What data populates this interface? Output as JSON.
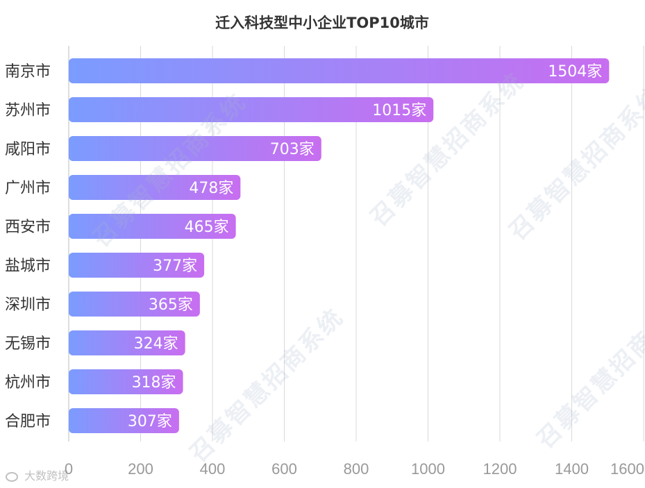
{
  "chart_data": {
    "type": "bar",
    "orientation": "horizontal",
    "title": "迁入科技型中小企业TOP10城市",
    "categories": [
      "南京市",
      "苏州市",
      "咸阳市",
      "广州市",
      "西安市",
      "盐城市",
      "深圳市",
      "无锡市",
      "杭州市",
      "合肥市"
    ],
    "values": [
      1504,
      1015,
      703,
      478,
      465,
      377,
      365,
      324,
      318,
      307
    ],
    "value_labels": [
      "1504家",
      "1015家",
      "703家",
      "478家",
      "465家",
      "377家",
      "365家",
      "324家",
      "318家",
      "307家"
    ],
    "xlim": [
      0,
      1600
    ],
    "x_ticks": [
      "0",
      "200",
      "400",
      "600",
      "800",
      "1000",
      "1200",
      "1400",
      "1600"
    ],
    "grid": "vertical",
    "bar_gradient": [
      "#7b9cff",
      "#c86ef0"
    ],
    "gridline_color": "#d9d9d9",
    "label_color": "#333333",
    "tick_color": "#999999"
  },
  "watermark": {
    "text": "召募智慧招商系统"
  },
  "source_mark": {
    "text": "大数跨境"
  }
}
